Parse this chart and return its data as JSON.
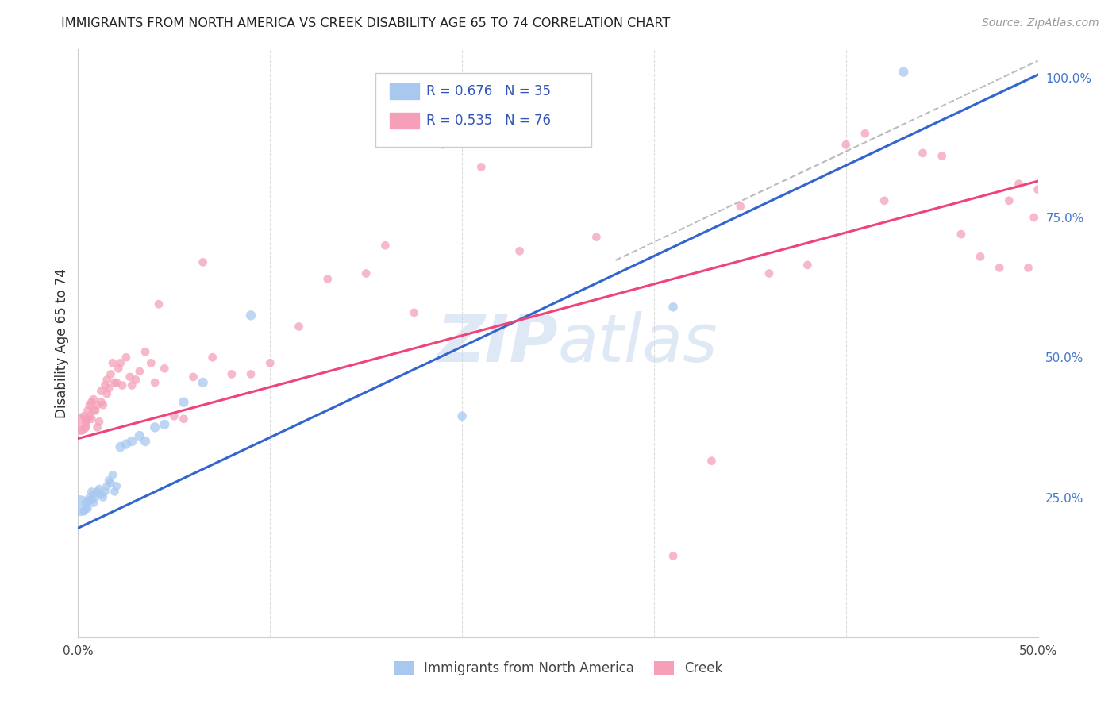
{
  "title": "IMMIGRANTS FROM NORTH AMERICA VS CREEK DISABILITY AGE 65 TO 74 CORRELATION CHART",
  "source": "Source: ZipAtlas.com",
  "ylabel": "Disability Age 65 to 74",
  "xlim": [
    0.0,
    0.5
  ],
  "ylim": [
    0.0,
    1.05
  ],
  "legend1_R": "0.676",
  "legend1_N": "35",
  "legend2_R": "0.535",
  "legend2_N": "76",
  "blue_color": "#a8c8f0",
  "pink_color": "#f5a0b8",
  "blue_line_color": "#3366cc",
  "pink_line_color": "#ee4477",
  "legend_text_color": "#3355bb",
  "watermark_color": "#c5d8ee",
  "blue_line_intercept": 0.195,
  "blue_line_slope": 1.62,
  "pink_line_intercept": 0.355,
  "pink_line_slope": 0.92,
  "dash_line_intercept": 0.22,
  "dash_line_slope": 1.62,
  "blue_scatter_x": [
    0.001,
    0.003,
    0.004,
    0.005,
    0.006,
    0.006,
    0.007,
    0.007,
    0.008,
    0.008,
    0.009,
    0.01,
    0.011,
    0.012,
    0.013,
    0.014,
    0.015,
    0.016,
    0.017,
    0.018,
    0.019,
    0.02,
    0.022,
    0.025,
    0.028,
    0.032,
    0.035,
    0.04,
    0.045,
    0.055,
    0.065,
    0.09,
    0.2,
    0.31,
    0.43
  ],
  "blue_scatter_y": [
    0.235,
    0.225,
    0.24,
    0.23,
    0.245,
    0.25,
    0.26,
    0.245,
    0.255,
    0.24,
    0.25,
    0.26,
    0.265,
    0.255,
    0.25,
    0.26,
    0.27,
    0.28,
    0.275,
    0.29,
    0.26,
    0.27,
    0.34,
    0.345,
    0.35,
    0.36,
    0.35,
    0.375,
    0.38,
    0.42,
    0.455,
    0.575,
    0.395,
    0.59,
    1.01
  ],
  "blue_scatter_size": [
    350,
    60,
    60,
    60,
    60,
    60,
    60,
    60,
    60,
    60,
    60,
    60,
    60,
    60,
    60,
    60,
    60,
    60,
    60,
    60,
    60,
    60,
    80,
    80,
    80,
    80,
    80,
    80,
    80,
    80,
    80,
    80,
    70,
    70,
    80
  ],
  "pink_scatter_x": [
    0.001,
    0.002,
    0.003,
    0.004,
    0.004,
    0.005,
    0.005,
    0.006,
    0.006,
    0.007,
    0.007,
    0.008,
    0.008,
    0.009,
    0.01,
    0.01,
    0.011,
    0.012,
    0.012,
    0.013,
    0.014,
    0.015,
    0.015,
    0.016,
    0.017,
    0.018,
    0.019,
    0.02,
    0.021,
    0.022,
    0.023,
    0.025,
    0.027,
    0.028,
    0.03,
    0.032,
    0.035,
    0.038,
    0.04,
    0.042,
    0.045,
    0.05,
    0.055,
    0.06,
    0.065,
    0.07,
    0.08,
    0.09,
    0.1,
    0.115,
    0.13,
    0.15,
    0.16,
    0.175,
    0.19,
    0.21,
    0.23,
    0.27,
    0.31,
    0.33,
    0.345,
    0.36,
    0.38,
    0.4,
    0.41,
    0.42,
    0.44,
    0.45,
    0.46,
    0.47,
    0.48,
    0.485,
    0.49,
    0.495,
    0.498,
    0.5
  ],
  "pink_scatter_y": [
    0.38,
    0.37,
    0.395,
    0.375,
    0.385,
    0.39,
    0.405,
    0.395,
    0.415,
    0.39,
    0.42,
    0.405,
    0.425,
    0.405,
    0.375,
    0.415,
    0.385,
    0.42,
    0.44,
    0.415,
    0.45,
    0.435,
    0.46,
    0.445,
    0.47,
    0.49,
    0.455,
    0.455,
    0.48,
    0.49,
    0.45,
    0.5,
    0.465,
    0.45,
    0.46,
    0.475,
    0.51,
    0.49,
    0.455,
    0.595,
    0.48,
    0.395,
    0.39,
    0.465,
    0.67,
    0.5,
    0.47,
    0.47,
    0.49,
    0.555,
    0.64,
    0.65,
    0.7,
    0.58,
    0.88,
    0.84,
    0.69,
    0.715,
    0.145,
    0.315,
    0.77,
    0.65,
    0.665,
    0.88,
    0.9,
    0.78,
    0.865,
    0.86,
    0.72,
    0.68,
    0.66,
    0.78,
    0.81,
    0.66,
    0.75,
    0.8
  ],
  "pink_scatter_size": [
    350,
    60,
    60,
    60,
    60,
    60,
    60,
    60,
    60,
    60,
    60,
    60,
    60,
    60,
    60,
    60,
    60,
    60,
    60,
    60,
    60,
    60,
    60,
    60,
    60,
    60,
    60,
    60,
    60,
    60,
    60,
    60,
    60,
    60,
    60,
    60,
    60,
    60,
    60,
    60,
    60,
    60,
    60,
    60,
    60,
    60,
    60,
    60,
    60,
    60,
    60,
    60,
    60,
    60,
    60,
    60,
    60,
    60,
    60,
    60,
    60,
    60,
    60,
    60,
    60,
    60,
    60,
    60,
    60,
    60,
    60,
    60,
    60,
    60,
    60,
    60
  ]
}
